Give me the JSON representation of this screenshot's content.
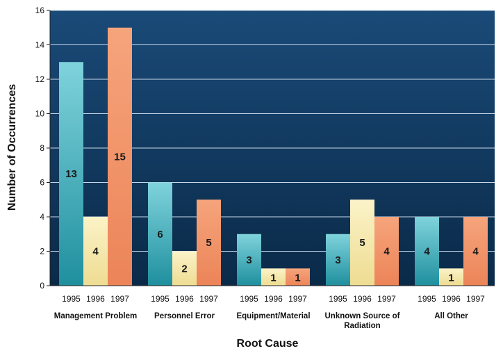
{
  "chart_data": {
    "type": "bar",
    "ylabel": "Number of Occurrences",
    "xlabel": "Root Cause",
    "ylim": [
      0,
      16
    ],
    "yticks": [
      0,
      2,
      4,
      6,
      8,
      10,
      12,
      14,
      16
    ],
    "grid": true,
    "groups": [
      {
        "label_lines": [
          "Management Problem"
        ],
        "bars": [
          {
            "year": "1995",
            "value": 13
          },
          {
            "year": "1996",
            "value": 4
          },
          {
            "year": "1997",
            "value": 15
          }
        ]
      },
      {
        "label_lines": [
          "Personnel Error"
        ],
        "bars": [
          {
            "year": "1995",
            "value": 6
          },
          {
            "year": "1996",
            "value": 2
          },
          {
            "year": "1997",
            "value": 5
          }
        ]
      },
      {
        "label_lines": [
          "Equipment/Material"
        ],
        "bars": [
          {
            "year": "1995",
            "value": 3
          },
          {
            "year": "1996",
            "value": 1
          },
          {
            "year": "1997",
            "value": 1
          }
        ]
      },
      {
        "label_lines": [
          "Unknown Source of",
          "Radiation"
        ],
        "bars": [
          {
            "year": "1995",
            "value": 3
          },
          {
            "year": "1996",
            "value": 5
          },
          {
            "year": "1997",
            "value": 4
          }
        ]
      },
      {
        "label_lines": [
          "All Other"
        ],
        "bars": [
          {
            "year": "1995",
            "value": 4
          },
          {
            "year": "1996",
            "value": 1
          },
          {
            "year": "1997",
            "value": 4
          }
        ]
      }
    ],
    "year_colors": {
      "1995": "#4fb8c4",
      "1996": "#f7eab0",
      "1997": "#f0956a"
    },
    "plot_colors": {
      "background_top": "#1a4a78",
      "background_bottom": "#0a2a48",
      "gridline": "#c8d8ea"
    }
  }
}
